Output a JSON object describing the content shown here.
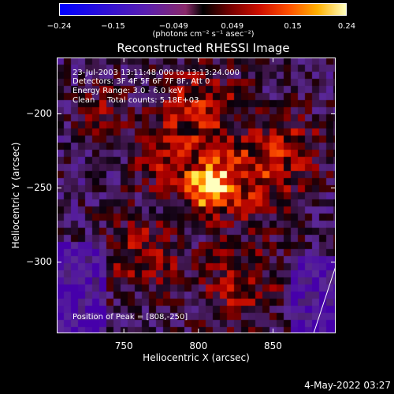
{
  "chart_data": {
    "type": "heatmap",
    "title": "Reconstructed RHESSI Image",
    "xlabel": "Heliocentric X (arcsec)",
    "ylabel": "Heliocentric Y (arcsec)",
    "xlim": [
      705,
      892
    ],
    "ylim": [
      -348,
      -162
    ],
    "x_ticks": [
      750,
      800,
      850
    ],
    "x_tick_labels": [
      "750",
      "800",
      "850"
    ],
    "y_ticks": [
      -200,
      -250,
      -300
    ],
    "y_tick_labels": [
      "-200",
      "-250",
      "-300"
    ],
    "colorbar": {
      "range": [
        -0.24,
        0.24
      ],
      "ticks": [
        -0.24,
        -0.15,
        -0.049,
        0.049,
        0.15,
        0.24
      ],
      "tick_labels": [
        "-0.24",
        "-0.15",
        "-0.049",
        "0.049",
        "0.15",
        "0.24"
      ],
      "units": "(photons cm⁻² s⁻¹ asec⁻²)"
    },
    "annotations": {
      "time_range": "23-Jul-2003 13:11:48.000 to 13:13:24.000",
      "detectors": "Detectors: 3F 4F 5F 6F 7F 8F, Att 0",
      "energy": "Energy Range: 3.0 - 6.0 keV",
      "clean": "Clean     Total counts: 5.18E+03",
      "peak": "Position of Peak = [808,-250]"
    },
    "peak": [
      808,
      -250
    ]
  },
  "timestamp": "4-May-2022 03:27"
}
